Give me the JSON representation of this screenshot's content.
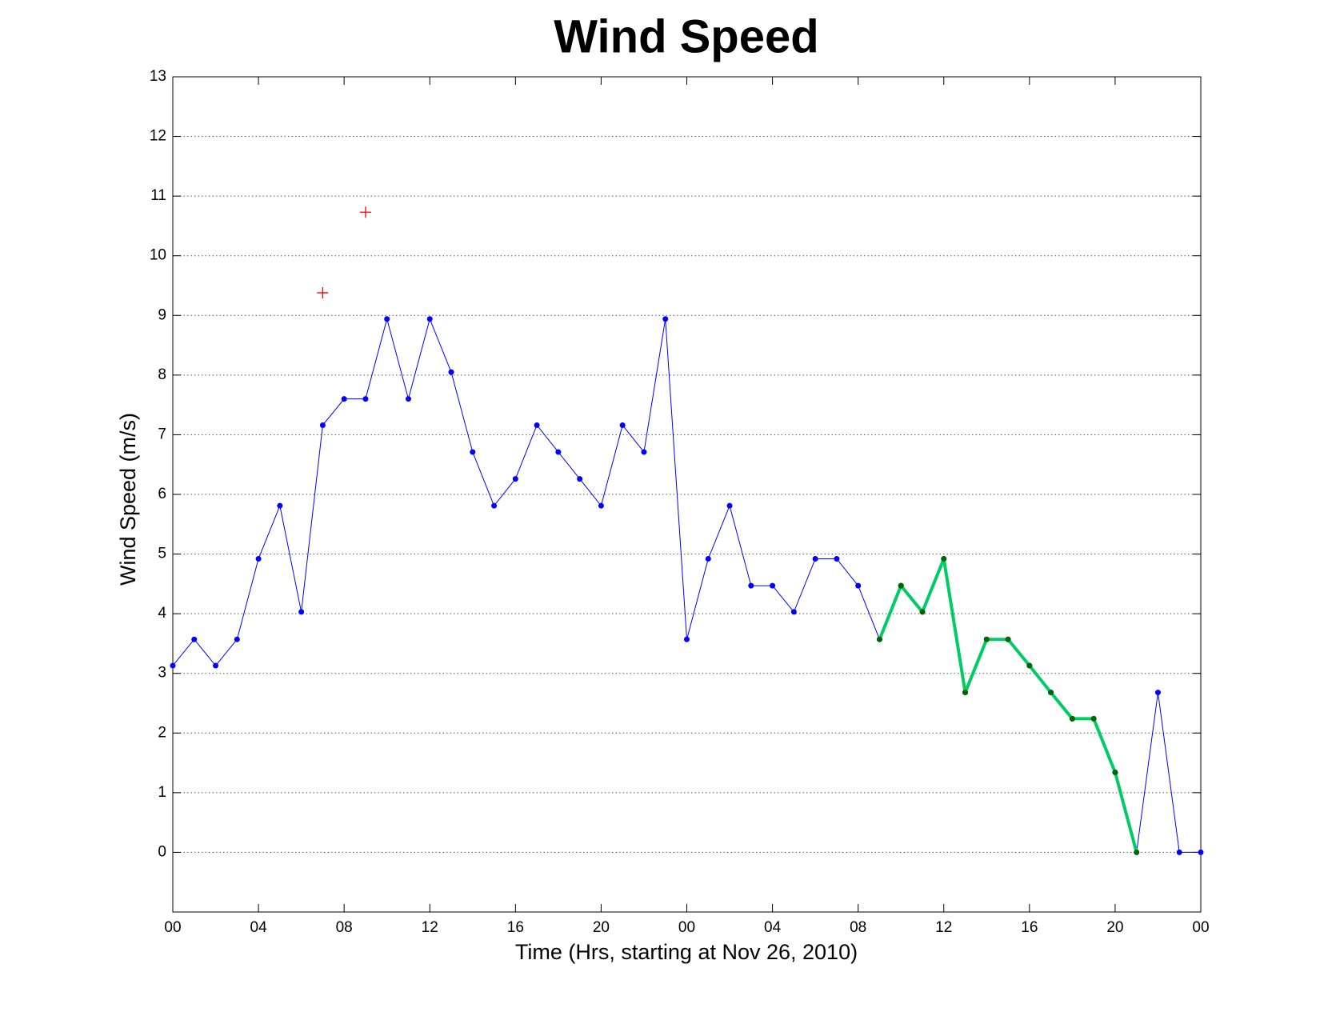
{
  "chart_data": {
    "type": "line",
    "title": "Wind Speed",
    "xlabel": "Time (Hrs, starting at Nov 26, 2010)",
    "ylabel": "Wind Speed (m/s)",
    "xlim": [
      0,
      48
    ],
    "ylim": [
      -1,
      13
    ],
    "xticks": [
      {
        "value": 0,
        "label": "00"
      },
      {
        "value": 4,
        "label": "04"
      },
      {
        "value": 8,
        "label": "08"
      },
      {
        "value": 12,
        "label": "12"
      },
      {
        "value": 16,
        "label": "16"
      },
      {
        "value": 20,
        "label": "20"
      },
      {
        "value": 24,
        "label": "00"
      },
      {
        "value": 28,
        "label": "04"
      },
      {
        "value": 32,
        "label": "08"
      },
      {
        "value": 36,
        "label": "12"
      },
      {
        "value": 40,
        "label": "16"
      },
      {
        "value": 44,
        "label": "20"
      },
      {
        "value": 48,
        "label": "00"
      }
    ],
    "yticks": [
      0,
      1,
      2,
      3,
      4,
      5,
      6,
      7,
      8,
      9,
      10,
      11,
      12,
      13
    ],
    "grid": true,
    "series": [
      {
        "color": "#0000ff",
        "marker_color": "#0000ff",
        "marker": "dot",
        "line_width": 1,
        "x": [
          0,
          1,
          2,
          3,
          4,
          5,
          6,
          7,
          8,
          9,
          10,
          11,
          12,
          13,
          14,
          15,
          16,
          17,
          18,
          19,
          20,
          21,
          22,
          23,
          24,
          25,
          26,
          27,
          28,
          29,
          30,
          31,
          32,
          33,
          34,
          35,
          36,
          37,
          38,
          39,
          40,
          41,
          42,
          43,
          44,
          45,
          46,
          47,
          48
        ],
        "values": [
          3.13,
          3.57,
          3.13,
          3.57,
          4.92,
          5.81,
          4.03,
          7.16,
          7.6,
          7.6,
          8.94,
          7.6,
          8.94,
          8.05,
          6.71,
          5.81,
          6.26,
          7.16,
          6.71,
          6.26,
          5.81,
          7.16,
          6.71,
          8.94,
          3.57,
          4.92,
          5.81,
          4.47,
          4.47,
          4.03,
          4.92,
          4.92,
          4.47,
          3.57,
          4.47,
          4.03,
          4.92,
          2.68,
          3.57,
          3.57,
          3.13,
          2.68,
          2.24,
          2.24,
          1.34,
          0,
          2.68,
          0,
          0
        ]
      },
      {
        "color": "#00cc66",
        "marker_color": "#006600",
        "marker": "dot",
        "line_width": 4,
        "x": [
          33,
          34,
          35,
          36,
          37,
          38,
          39,
          40,
          41,
          42,
          43,
          44,
          45
        ],
        "values": [
          3.57,
          4.47,
          4.03,
          4.92,
          2.68,
          3.57,
          3.57,
          3.13,
          2.68,
          2.24,
          2.24,
          1.34,
          0
        ]
      },
      {
        "color": "#ff0000",
        "marker_color": "#ff0000",
        "marker": "plus",
        "line_width": 0,
        "x": [
          7,
          9
        ],
        "values": [
          9.38,
          10.73
        ]
      }
    ]
  }
}
